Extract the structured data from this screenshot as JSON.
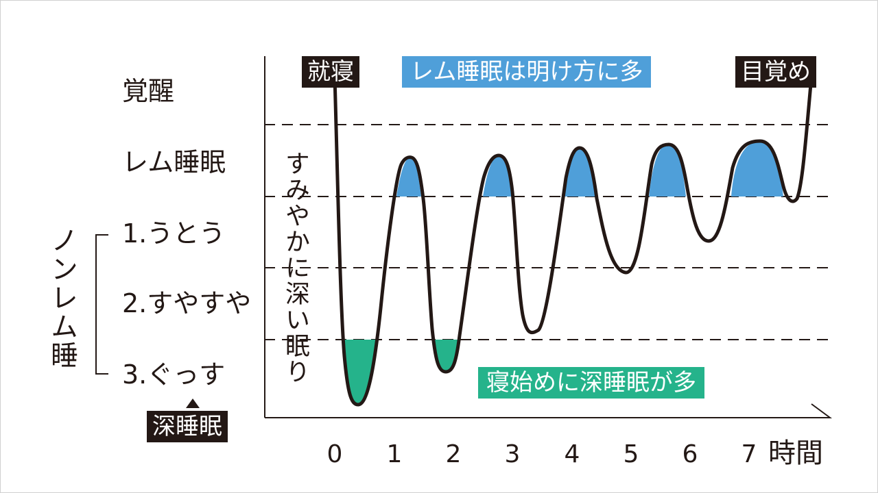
{
  "levels": {
    "awake": "覚醒",
    "rem": "レム睡眠",
    "stage1": "1.うとう",
    "stage2": "2.すやすや",
    "stage3": "3.ぐっす"
  },
  "nonrem_label": "ノンレム睡",
  "deep_sleep_badge": "深睡眠",
  "fall_asleep_note": "すみやかに深い眠り",
  "annotations": {
    "sleep_onset": "就寝",
    "wake_up": "目覚め",
    "rem_note": "レム睡眠は明け方に多",
    "deep_note": "寝始めに深睡眠が多"
  },
  "x_axis": {
    "ticks": [
      "0",
      "1",
      "2",
      "3",
      "4",
      "5",
      "6",
      "7"
    ],
    "label": "時間"
  },
  "colors": {
    "rem": "#4f9fd9",
    "deep": "#25b38b",
    "line": "#231815"
  }
}
